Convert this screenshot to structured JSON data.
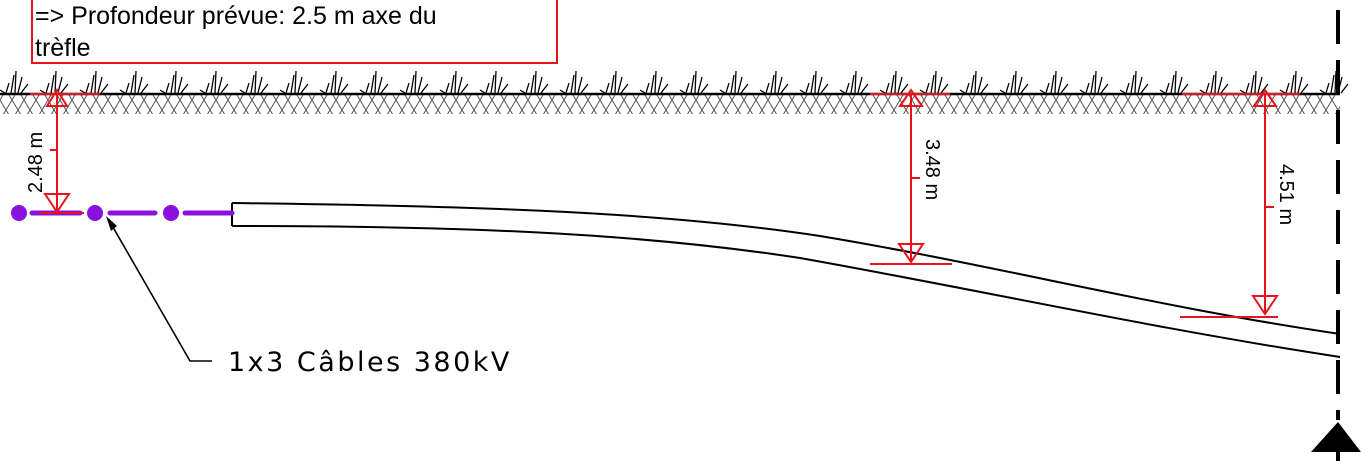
{
  "note": {
    "line1": "=> Profondeur prévue: 2.5 m axe du",
    "line2": "trèfle"
  },
  "cable_label": "1x3 Câbles 380kV",
  "dimensions": [
    {
      "label": "2.48 m"
    },
    {
      "label": "3.48 m"
    },
    {
      "label": "4.51 m"
    }
  ],
  "colors": {
    "dimension": "#e8121b",
    "cable": "#8a10e0",
    "line": "#000000"
  }
}
